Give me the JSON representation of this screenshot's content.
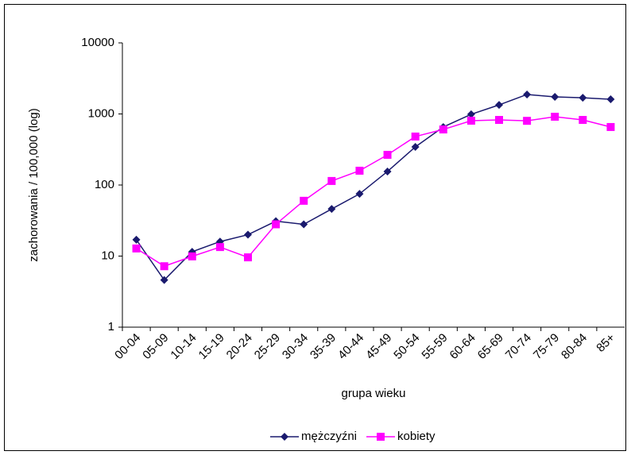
{
  "chart_data": {
    "type": "line",
    "x_label": "grupa wieku",
    "y_label": "zachorowania / 100,000 (log)",
    "categories": [
      "00-04",
      "05-09",
      "10-14",
      "15-19",
      "20-24",
      "25-29",
      "30-34",
      "35-39",
      "40-44",
      "45-49",
      "50-54",
      "55-59",
      "60-64",
      "65-69",
      "70-74",
      "75-79",
      "80-84",
      "85+"
    ],
    "series": [
      {
        "name": "mężczyźni",
        "color": "#1a1a6e",
        "marker": "diamond",
        "values": [
          17,
          4.6,
          11.5,
          16,
          20,
          31,
          28,
          46,
          75,
          155,
          344,
          655,
          990,
          1340,
          1880,
          1740,
          1690,
          1610
        ]
      },
      {
        "name": "kobiety",
        "color": "#ff00ff",
        "marker": "square",
        "values": [
          12.8,
          7.2,
          9.9,
          13.4,
          9.6,
          28,
          60,
          114,
          159,
          266,
          481,
          605,
          804,
          824,
          800,
          914,
          824,
          655
        ]
      }
    ],
    "ylim": [
      1,
      10000
    ],
    "yticks": [
      1,
      10,
      100,
      1000,
      10000
    ],
    "log_scale": true,
    "grid": false,
    "legend": "bottom"
  }
}
